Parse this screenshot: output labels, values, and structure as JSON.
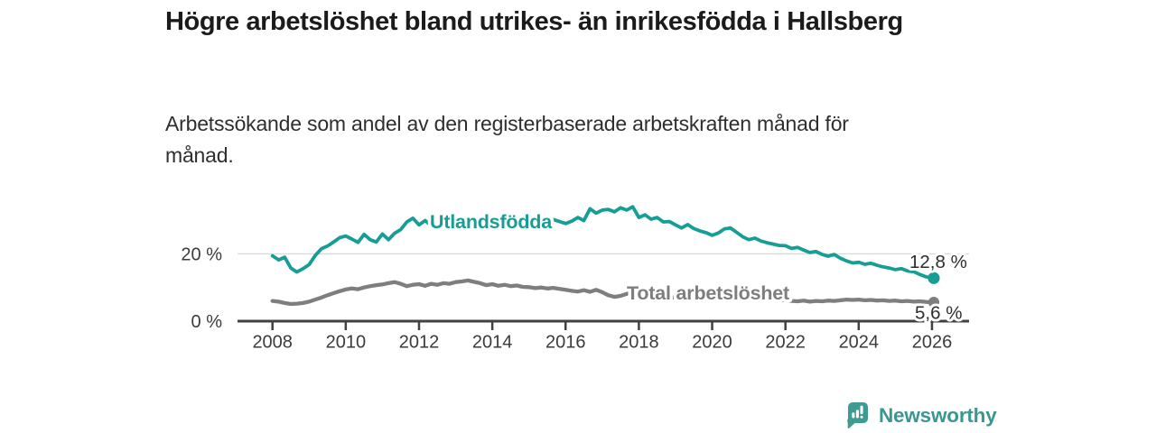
{
  "header": {
    "title": "Högre arbetslöshet bland utrikes- än inrikesfödda i Hallsberg",
    "subtitle": "Arbetssökande som andel av den registerbaserade arbetskraften månad för månad."
  },
  "chart_data": {
    "type": "line",
    "title": "Högre arbetslöshet bland utrikes- än inrikesfödda i Hallsberg",
    "subtitle": "Arbetssökande som andel av den registerbaserade arbetskraften månad för månad.",
    "x_unit": "year (monthly-interval data, plotted every 2 months)",
    "x_start_year": 2008,
    "x_step_years": 0.166667,
    "x_tick_labels": [
      "2008",
      "2010",
      "2012",
      "2014",
      "2016",
      "2018",
      "2020",
      "2022",
      "2024",
      "2026"
    ],
    "y_ticks": [
      {
        "value": 0,
        "label": "0 %",
        "gridline": false
      },
      {
        "value": 20,
        "label": "20 %",
        "gridline": true
      }
    ],
    "ylim": [
      0,
      38
    ],
    "grid": "single horizontal gridline at 20 %",
    "legend_position": "inline labels on lines",
    "series": [
      {
        "name": "Utlandsfödda",
        "color": "#169e96",
        "end_value_label": "12,8 %",
        "values": [
          19.4,
          18.2,
          19.0,
          15.8,
          14.6,
          15.6,
          16.8,
          19.5,
          21.5,
          22.3,
          23.5,
          24.8,
          25.3,
          24.4,
          23.4,
          25.8,
          24.2,
          23.5,
          25.9,
          24.2,
          26.1,
          27.2,
          29.5,
          30.6,
          28.6,
          29.9,
          28.4,
          29.3,
          28.8,
          29.5,
          30.0,
          29.3,
          30.1,
          29.4,
          29.9,
          29.2,
          29.7,
          29.0,
          29.7,
          29.2,
          29.9,
          29.4,
          30.0,
          29.3,
          30.1,
          29.5,
          30.2,
          29.6,
          29.0,
          29.7,
          30.8,
          29.9,
          33.4,
          32.1,
          33.0,
          33.2,
          32.5,
          33.7,
          33.0,
          34.0,
          30.8,
          31.6,
          30.3,
          30.8,
          29.5,
          29.6,
          28.6,
          27.7,
          28.7,
          27.5,
          26.8,
          26.3,
          25.5,
          26.2,
          27.4,
          27.7,
          26.4,
          25.1,
          24.2,
          24.7,
          23.8,
          23.3,
          22.9,
          22.5,
          22.4,
          21.6,
          21.9,
          21.1,
          20.4,
          20.7,
          19.8,
          19.3,
          19.8,
          18.7,
          17.9,
          17.3,
          17.5,
          16.9,
          17.2,
          16.6,
          16.1,
          15.8,
          15.3,
          15.6,
          14.9,
          14.7,
          13.9,
          13.2,
          12.8
        ]
      },
      {
        "name": "Total arbetslöshet",
        "color": "#7e7e7e",
        "end_value_label": "5,6 %",
        "values": [
          6.0,
          5.8,
          5.4,
          5.1,
          5.2,
          5.4,
          5.8,
          6.4,
          7.0,
          7.7,
          8.3,
          8.9,
          9.4,
          9.7,
          9.5,
          10.0,
          10.4,
          10.7,
          10.9,
          11.3,
          11.6,
          11.1,
          10.4,
          10.8,
          11.0,
          10.5,
          11.1,
          10.8,
          11.3,
          11.1,
          11.6,
          11.8,
          12.1,
          11.7,
          11.3,
          10.7,
          11.0,
          10.5,
          10.8,
          10.4,
          10.6,
          10.2,
          10.1,
          9.8,
          10.0,
          9.7,
          9.9,
          9.6,
          9.3,
          9.0,
          8.8,
          9.2,
          8.7,
          9.3,
          8.6,
          7.7,
          7.2,
          7.5,
          8.1,
          9.0,
          8.6,
          8.2,
          7.9,
          7.6,
          7.3,
          7.1,
          7.0,
          6.9,
          6.8,
          6.9,
          7.1,
          7.4,
          7.8,
          8.2,
          8.5,
          8.3,
          8.0,
          7.8,
          7.6,
          7.4,
          7.1,
          6.9,
          6.6,
          6.4,
          6.2,
          6.0,
          5.9,
          6.1,
          5.8,
          6.0,
          5.9,
          6.1,
          6.0,
          6.2,
          6.4,
          6.3,
          6.4,
          6.2,
          6.3,
          6.1,
          6.2,
          6.0,
          6.1,
          5.9,
          6.0,
          5.8,
          5.9,
          5.7,
          5.6
        ]
      }
    ]
  },
  "colors": {
    "accent_teal": "#169e96",
    "line_gray": "#7e7e7e",
    "axis": "#414141",
    "gridline": "#d9d9d9",
    "tick_text": "#3b3b3b",
    "value_label_text": "#2e2e2e",
    "logo_teal": "#3a9691"
  },
  "footer": {
    "brand": "Newsworthy",
    "logo_icon": "newsworthy-speech-bubble-bar-chart-icon"
  }
}
